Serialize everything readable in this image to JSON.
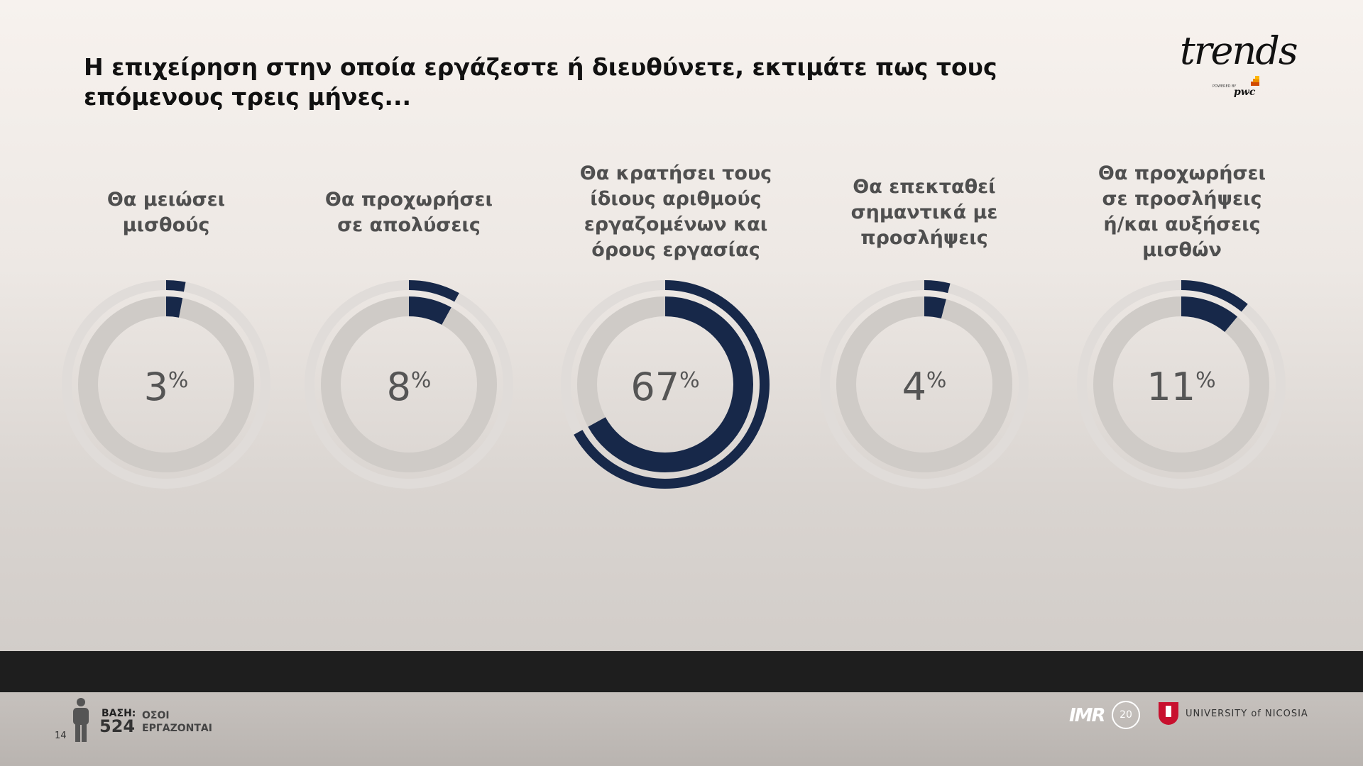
{
  "title": "Η επιχείρηση στην οποία εργάζεστε ή διευθύνετε, εκτιμάτε πως τους επόμενους τρεις μήνες...",
  "brand": {
    "wordmark": "trends",
    "powered_by": "POWERED BY",
    "partner": "pwc"
  },
  "chart_data": {
    "type": "donut",
    "unit": "%",
    "categories": [
      [
        "Θα μειώσει",
        "μισθούς"
      ],
      [
        "Θα προχωρήσει",
        "σε απολύσεις"
      ],
      [
        "Θα κρατήσει τους",
        "ίδιους αριθμούς",
        "εργαζομένων και",
        "όρους εργασίας"
      ],
      [
        "Θα επεκταθεί",
        "σημαντικά με",
        "προσλήψεις"
      ],
      [
        "Θα προχωρήσει",
        "σε προσλήψεις",
        "ή/και αυξήσεις",
        "μισθών"
      ]
    ],
    "values": [
      3,
      8,
      67,
      4,
      11
    ],
    "value_labels": [
      "3",
      "8",
      "67",
      "4",
      "11"
    ],
    "percent_sign": "%",
    "colors": {
      "value": "#172849",
      "track": "#cfcbc7",
      "outer_track": "#e0dcd9",
      "value_text": "#555555"
    }
  },
  "footer": {
    "base_label": "ΒΑΣΗ:",
    "base_value": "524",
    "base_desc_1": "ΟΣΟΙ",
    "base_desc_2": "ΕΡΓΑΖΟΝΤΑΙ",
    "page_number": "14",
    "logo_imr": "IMR",
    "logo_imr_anniversary": "20",
    "logo_university": "UNIVERSITY of NICOSIA",
    "icon": "person-icon"
  }
}
